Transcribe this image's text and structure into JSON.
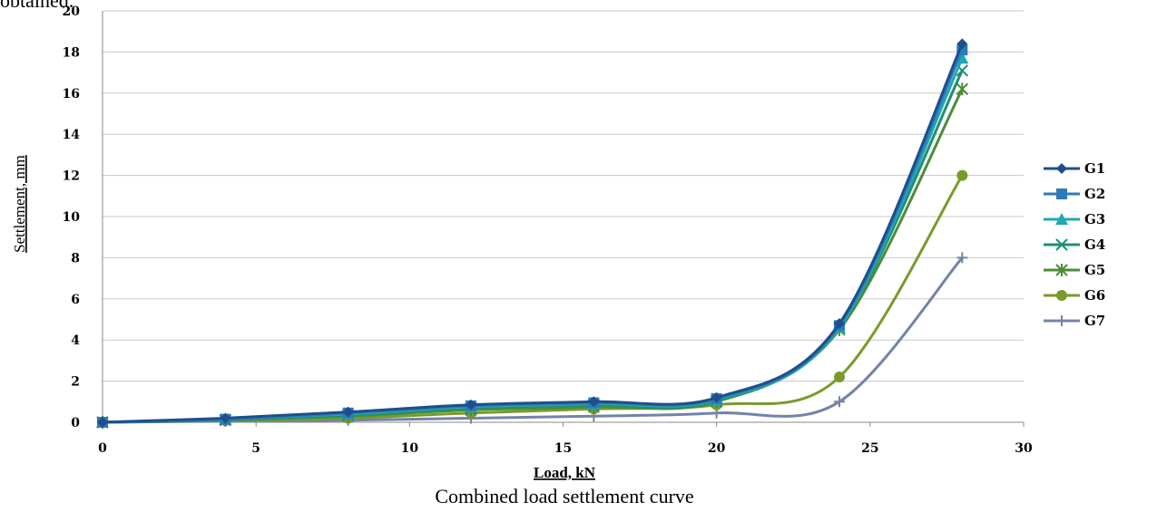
{
  "top_text": "obtained.",
  "caption": "Combined load settlement curve",
  "chart_data": {
    "type": "line",
    "title": "",
    "xlabel": "Load, kN",
    "ylabel": "Settlement, mm",
    "xlim": [
      0,
      30
    ],
    "ylim": [
      0,
      20
    ],
    "xticks": [
      0,
      5,
      10,
      15,
      20,
      25,
      30
    ],
    "yticks": [
      0,
      2,
      4,
      6,
      8,
      10,
      12,
      14,
      16,
      18,
      20
    ],
    "grid": "horizontal",
    "legend_position": "right",
    "x": [
      0,
      4,
      8,
      12,
      16,
      20,
      24,
      28
    ],
    "series": [
      {
        "name": "G1",
        "color": "#1f4e8c",
        "marker": "diamond",
        "values": [
          0,
          0.2,
          0.5,
          0.85,
          1.0,
          1.2,
          4.8,
          18.4
        ]
      },
      {
        "name": "G2",
        "color": "#2b7bba",
        "marker": "square",
        "values": [
          0,
          0.15,
          0.45,
          0.8,
          0.95,
          1.15,
          4.7,
          18.1
        ]
      },
      {
        "name": "G3",
        "color": "#1fa8b0",
        "marker": "triangle",
        "values": [
          0,
          0.15,
          0.4,
          0.75,
          0.9,
          1.1,
          4.6,
          17.7
        ]
      },
      {
        "name": "G4",
        "color": "#1e8f72",
        "marker": "x",
        "values": [
          0,
          0.12,
          0.35,
          0.7,
          0.85,
          1.05,
          4.6,
          17.1
        ]
      },
      {
        "name": "G5",
        "color": "#4b8c3a",
        "marker": "star",
        "values": [
          0,
          0.1,
          0.3,
          0.6,
          0.75,
          1.0,
          4.5,
          16.2
        ]
      },
      {
        "name": "G6",
        "color": "#7a9a2a",
        "marker": "circle",
        "values": [
          0,
          0.08,
          0.2,
          0.45,
          0.65,
          0.85,
          2.2,
          12.0
        ]
      },
      {
        "name": "G7",
        "color": "#7383a8",
        "marker": "plus",
        "values": [
          0,
          0.05,
          0.1,
          0.2,
          0.3,
          0.45,
          1.0,
          8.0
        ]
      }
    ]
  }
}
